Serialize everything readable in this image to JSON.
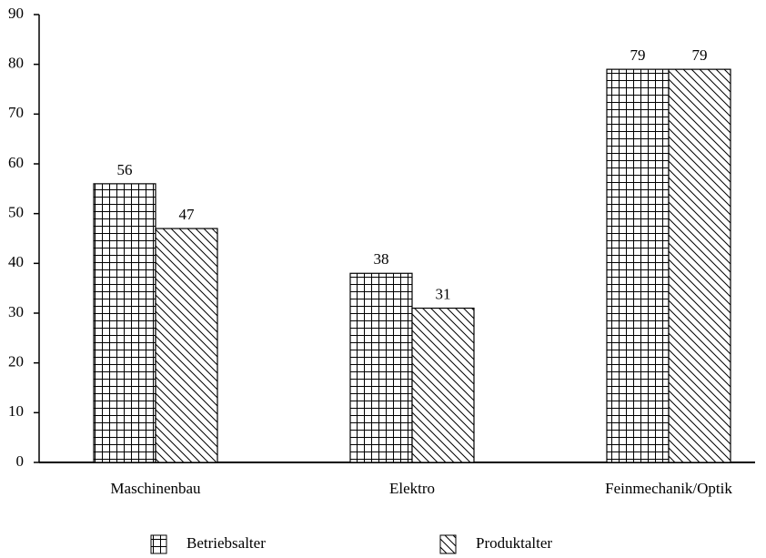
{
  "chart_data": {
    "type": "bar",
    "categories": [
      "Maschinenbau",
      "Elektro",
      "Feinmechanik/Optik"
    ],
    "series": [
      {
        "name": "Betriebsalter",
        "color": "#000000",
        "pattern": "grid",
        "values": [
          56,
          38,
          79
        ]
      },
      {
        "name": "Produktalter",
        "color": "#000000",
        "pattern": "diagonal",
        "values": [
          47,
          31,
          79
        ]
      }
    ],
    "ylim": [
      0,
      90
    ],
    "yticks": [
      0,
      10,
      20,
      30,
      40,
      50,
      60,
      70,
      80,
      90
    ],
    "grid": false,
    "legend": "bottom"
  }
}
